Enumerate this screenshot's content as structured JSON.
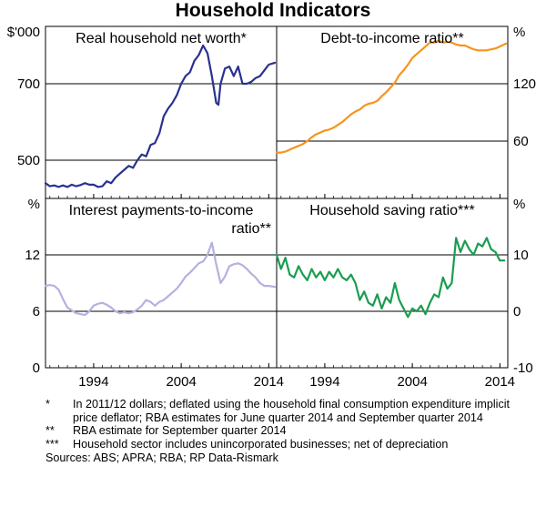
{
  "figure": {
    "title": "Household Indicators",
    "notes": [
      {
        "marker": "*",
        "text": "In 2011/12 dollars; deflated using the household final consumption expenditure implicit price deflator; RBA estimates for June quarter 2014 and September quarter 2014"
      },
      {
        "marker": "**",
        "text": "RBA estimate for September quarter 2014"
      },
      {
        "marker": "***",
        "text": "Household sector includes unincorporated businesses; net of depreciation"
      }
    ],
    "sources": "Sources: ABS; APRA; RBA; RP Data-Rismark",
    "colors": {
      "net_worth": "#2a3190",
      "debt": "#f7941d",
      "interest": "#b3b1e0",
      "saving": "#1a9d50"
    }
  },
  "chart_data": [
    {
      "type": "line",
      "title": "Real household net worth*",
      "ylabel": "$'000",
      "ylim": [
        400,
        850
      ],
      "yticks": [
        500,
        700
      ],
      "xlim": [
        1988.5,
        2014.9
      ],
      "xticks": [
        1994,
        2004,
        2014
      ],
      "series": [
        {
          "name": "Real household net worth",
          "x": [
            1988.5,
            1989,
            1989.5,
            1990,
            1990.5,
            1991,
            1991.5,
            1992,
            1992.5,
            1993,
            1993.5,
            1994,
            1994.5,
            1995,
            1995.5,
            1996,
            1996.5,
            1997,
            1997.5,
            1998,
            1998.5,
            1999,
            1999.5,
            2000,
            2000.5,
            2001,
            2001.5,
            2002,
            2002.5,
            2003,
            2003.5,
            2004,
            2004.5,
            2005,
            2005.5,
            2006,
            2006.5,
            2007,
            2007.5,
            2008,
            2008.25,
            2008.5,
            2009,
            2009.5,
            2010,
            2010.5,
            2011,
            2011.5,
            2012,
            2012.5,
            2013,
            2013.5,
            2014,
            2014.7
          ],
          "y": [
            440,
            432,
            434,
            430,
            434,
            430,
            436,
            432,
            435,
            440,
            436,
            436,
            430,
            432,
            445,
            440,
            455,
            465,
            475,
            485,
            480,
            500,
            515,
            510,
            540,
            545,
            570,
            615,
            635,
            650,
            670,
            700,
            720,
            730,
            760,
            775,
            800,
            780,
            720,
            650,
            645,
            700,
            740,
            745,
            720,
            745,
            700,
            700,
            705,
            715,
            720,
            735,
            750,
            755
          ]
        }
      ]
    },
    {
      "type": "line",
      "title": "Debt-to-income ratio**",
      "ylabel": "%",
      "ylim": [
        0,
        180
      ],
      "yticks": [
        60,
        120
      ],
      "xlim": [
        1988.5,
        2014.9
      ],
      "xticks": [
        1994,
        2004,
        2014
      ],
      "series": [
        {
          "name": "Debt-to-income ratio",
          "x": [
            1988.5,
            1989,
            1989.5,
            1990,
            1990.5,
            1991,
            1991.5,
            1992,
            1992.5,
            1993,
            1993.5,
            1994,
            1994.5,
            1995,
            1995.5,
            1996,
            1996.5,
            1997,
            1997.5,
            1998,
            1998.5,
            1999,
            1999.5,
            2000,
            2000.5,
            2001,
            2001.5,
            2002,
            2002.5,
            2003,
            2003.5,
            2004,
            2004.5,
            2005,
            2005.5,
            2006,
            2006.5,
            2007,
            2007.5,
            2008,
            2008.5,
            2009,
            2009.5,
            2010,
            2010.5,
            2011,
            2011.5,
            2012,
            2012.5,
            2013,
            2013.5,
            2014,
            2014.7
          ],
          "y": [
            48,
            48,
            49,
            51,
            53,
            55,
            57,
            60,
            64,
            67,
            69,
            71,
            72,
            74,
            77,
            80,
            84,
            88,
            91,
            93,
            97,
            99,
            100,
            102,
            107,
            111,
            116,
            121,
            129,
            134,
            140,
            147,
            151,
            155,
            159,
            163,
            163,
            165,
            163,
            164,
            163,
            161,
            160,
            160,
            158,
            156,
            155,
            155,
            155,
            156,
            157,
            159,
            162
          ]
        }
      ]
    },
    {
      "type": "line",
      "title": "Interest payments-to-income ratio**",
      "ylabel": "%",
      "ylim": [
        0,
        18
      ],
      "yticks": [
        0,
        6,
        12
      ],
      "xlim": [
        1988.5,
        2014.9
      ],
      "xticks": [
        1994,
        2004,
        2014
      ],
      "series": [
        {
          "name": "Interest payments-to-income ratio",
          "x": [
            1988.5,
            1989,
            1989.5,
            1990,
            1990.5,
            1991,
            1991.5,
            1992,
            1992.5,
            1993,
            1993.5,
            1994,
            1994.5,
            1995,
            1995.5,
            1996,
            1996.5,
            1997,
            1997.5,
            1998,
            1998.5,
            1999,
            1999.5,
            2000,
            2000.5,
            2001,
            2001.5,
            2002,
            2002.5,
            2003,
            2003.5,
            2004,
            2004.5,
            2005,
            2005.5,
            2006,
            2006.5,
            2007,
            2007.5,
            2008,
            2008.5,
            2009,
            2009.5,
            2010,
            2010.5,
            2011,
            2011.5,
            2012,
            2012.5,
            2013,
            2013.5,
            2014,
            2014.7
          ],
          "y": [
            8.7,
            8.8,
            8.7,
            8.3,
            7.3,
            6.4,
            6.1,
            5.8,
            5.7,
            5.6,
            6.0,
            6.6,
            6.8,
            6.9,
            6.7,
            6.4,
            6.0,
            5.8,
            5.9,
            5.8,
            5.9,
            6.2,
            6.6,
            7.2,
            7.0,
            6.6,
            7.0,
            7.2,
            7.6,
            8.0,
            8.4,
            9.0,
            9.7,
            10.1,
            10.6,
            11.1,
            11.3,
            12.0,
            13.3,
            11.0,
            9.0,
            9.7,
            10.8,
            11.0,
            11.1,
            10.9,
            10.5,
            10.0,
            9.6,
            9.0,
            8.7,
            8.7,
            8.6
          ]
        }
      ]
    },
    {
      "type": "line",
      "title": "Household saving ratio***",
      "ylabel": "%",
      "ylim": [
        -10,
        20
      ],
      "yticks": [
        -10,
        0,
        10
      ],
      "xlim": [
        1988.5,
        2014.9
      ],
      "xticks": [
        1994,
        2004,
        2014
      ],
      "series": [
        {
          "name": "Household saving ratio",
          "x": [
            1988.5,
            1989,
            1989.5,
            1990,
            1990.5,
            1991,
            1991.5,
            1992,
            1992.5,
            1993,
            1993.5,
            1994,
            1994.5,
            1995,
            1995.5,
            1996,
            1996.5,
            1997,
            1997.5,
            1998,
            1998.5,
            1999,
            1999.5,
            2000,
            2000.5,
            2001,
            2001.5,
            2002,
            2002.5,
            2003,
            2003.5,
            2004,
            2004.5,
            2005,
            2005.5,
            2006,
            2006.5,
            2007,
            2007.5,
            2008,
            2008.5,
            2009,
            2009.5,
            2010,
            2010.5,
            2011,
            2011.5,
            2012,
            2012.5,
            2013,
            2013.5,
            2014,
            2014.5
          ],
          "y": [
            10,
            7.5,
            9.5,
            6.5,
            6,
            8,
            6.5,
            5.5,
            7.5,
            6,
            7,
            5.5,
            7,
            6,
            7.5,
            6,
            5.5,
            6.5,
            5,
            2,
            3.5,
            1.5,
            1,
            3,
            0.5,
            2.5,
            1.5,
            5,
            2,
            0.5,
            -1,
            0.5,
            0,
            1,
            -0.5,
            1.5,
            3,
            2.5,
            6,
            4,
            5,
            13,
            10.5,
            12.5,
            11,
            10,
            12,
            11.5,
            13,
            11,
            10.5,
            9,
            9
          ]
        }
      ]
    }
  ]
}
